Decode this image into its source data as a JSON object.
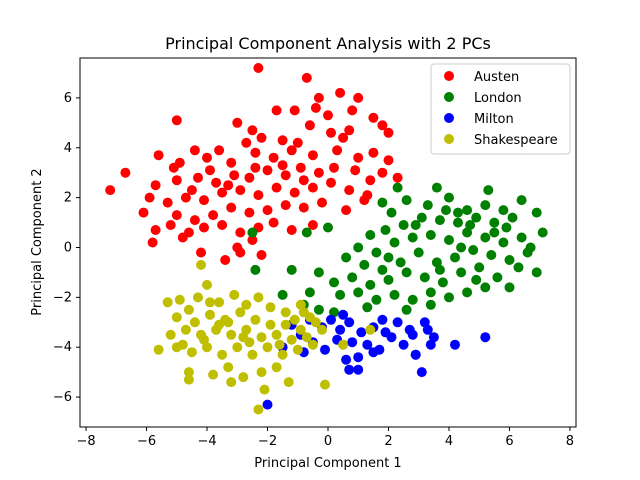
{
  "chart_data": {
    "type": "scatter",
    "title": "Principal Component Analysis with 2 PCs",
    "xlabel": "Principal Component 1",
    "ylabel": "Principal Component 2",
    "xlim": [
      -8.2,
      8.2
    ],
    "ylim": [
      -7.2,
      7.6
    ],
    "xticks": [
      -8,
      -6,
      -4,
      -2,
      0,
      2,
      4,
      6,
      8
    ],
    "yticks": [
      -6,
      -4,
      -2,
      0,
      2,
      4,
      6
    ],
    "grid": false,
    "legend_position": "top-right",
    "series": [
      {
        "name": "Austen",
        "color": "#ff0000",
        "points": [
          [
            -2.3,
            7.2
          ],
          [
            -0.7,
            6.8
          ],
          [
            -0.3,
            6.0
          ],
          [
            0.4,
            6.2
          ],
          [
            1.0,
            6.0
          ],
          [
            -1.7,
            5.5
          ],
          [
            -1.1,
            5.5
          ],
          [
            -0.4,
            5.6
          ],
          [
            0.0,
            5.3
          ],
          [
            0.8,
            5.5
          ],
          [
            1.5,
            5.2
          ],
          [
            -3.0,
            5.0
          ],
          [
            -2.5,
            4.7
          ],
          [
            -5.0,
            5.1
          ],
          [
            1.8,
            4.9
          ],
          [
            2.0,
            4.6
          ],
          [
            -0.6,
            4.9
          ],
          [
            0.1,
            4.6
          ],
          [
            0.7,
            4.7
          ],
          [
            -1.5,
            4.3
          ],
          [
            -2.7,
            4.2
          ],
          [
            -3.6,
            3.9
          ],
          [
            -4.4,
            3.9
          ],
          [
            -4.9,
            3.4
          ],
          [
            -5.6,
            3.7
          ],
          [
            -5.1,
            3.2
          ],
          [
            -4.0,
            3.6
          ],
          [
            -3.2,
            3.4
          ],
          [
            -2.4,
            3.8
          ],
          [
            -1.8,
            3.6
          ],
          [
            -1.2,
            3.9
          ],
          [
            -0.5,
            3.7
          ],
          [
            0.3,
            3.9
          ],
          [
            1.0,
            3.6
          ],
          [
            1.5,
            3.8
          ],
          [
            2.0,
            3.5
          ],
          [
            1.8,
            3.0
          ],
          [
            2.3,
            2.8
          ],
          [
            1.4,
            2.7
          ],
          [
            0.9,
            3.1
          ],
          [
            0.2,
            3.2
          ],
          [
            -0.3,
            3.0
          ],
          [
            -0.9,
            3.2
          ],
          [
            -1.4,
            2.9
          ],
          [
            -2.0,
            3.1
          ],
          [
            -2.6,
            2.8
          ],
          [
            -3.1,
            2.9
          ],
          [
            -3.7,
            2.6
          ],
          [
            -4.3,
            2.8
          ],
          [
            -5.0,
            2.7
          ],
          [
            -5.7,
            2.5
          ],
          [
            -6.7,
            3.0
          ],
          [
            -7.2,
            2.3
          ],
          [
            -5.9,
            2.0
          ],
          [
            -5.3,
            1.8
          ],
          [
            -4.7,
            2.0
          ],
          [
            -4.1,
            1.9
          ],
          [
            -3.5,
            2.2
          ],
          [
            -2.9,
            2.3
          ],
          [
            -2.3,
            2.1
          ],
          [
            -1.7,
            2.4
          ],
          [
            -1.1,
            2.2
          ],
          [
            -0.5,
            2.4
          ],
          [
            0.1,
            2.6
          ],
          [
            0.7,
            2.3
          ],
          [
            1.3,
            2.1
          ],
          [
            -0.2,
            1.8
          ],
          [
            -0.8,
            1.6
          ],
          [
            -1.4,
            1.7
          ],
          [
            -2.0,
            1.5
          ],
          [
            -2.6,
            1.4
          ],
          [
            -3.2,
            1.6
          ],
          [
            -3.8,
            1.3
          ],
          [
            -4.4,
            1.1
          ],
          [
            -5.0,
            1.3
          ],
          [
            -6.1,
            1.4
          ],
          [
            -5.7,
            0.7
          ],
          [
            -5.2,
            0.9
          ],
          [
            -4.6,
            0.6
          ],
          [
            -4.1,
            0.8
          ],
          [
            -3.5,
            0.9
          ],
          [
            -2.9,
            0.6
          ],
          [
            -2.3,
            0.8
          ],
          [
            -1.8,
            1.0
          ],
          [
            -1.2,
            0.7
          ],
          [
            -2.5,
            0.3
          ],
          [
            -3.0,
            0.0
          ],
          [
            -4.8,
            0.4
          ],
          [
            -5.8,
            0.2
          ],
          [
            -4.2,
            -0.2
          ],
          [
            -3.4,
            -0.5
          ],
          [
            -2.9,
            -0.2
          ],
          [
            -2.2,
            -0.3
          ],
          [
            -0.5,
            0.9
          ],
          [
            0.6,
            1.5
          ],
          [
            1.2,
            1.9
          ],
          [
            -3.9,
            3.1
          ],
          [
            -2.2,
            4.4
          ],
          [
            -1.0,
            4.2
          ],
          [
            0.5,
            4.4
          ],
          [
            -4.5,
            2.3
          ],
          [
            -3.3,
            2.5
          ],
          [
            -2.4,
            3.2
          ],
          [
            -1.5,
            3.3
          ],
          [
            -0.8,
            2.7
          ]
        ]
      },
      {
        "name": "London",
        "color": "#008000",
        "points": [
          [
            3.6,
            2.4
          ],
          [
            5.3,
            2.3
          ],
          [
            2.3,
            2.4
          ],
          [
            1.8,
            1.8
          ],
          [
            2.6,
            1.9
          ],
          [
            3.3,
            1.7
          ],
          [
            4.0,
            2.0
          ],
          [
            4.6,
            1.5
          ],
          [
            5.2,
            1.7
          ],
          [
            5.8,
            1.5
          ],
          [
            6.4,
            1.9
          ],
          [
            6.9,
            1.4
          ],
          [
            6.1,
            1.2
          ],
          [
            5.5,
            1.0
          ],
          [
            4.9,
            1.2
          ],
          [
            4.3,
            1.0
          ],
          [
            3.7,
            1.1
          ],
          [
            3.1,
            1.2
          ],
          [
            2.5,
            0.9
          ],
          [
            1.9,
            0.7
          ],
          [
            1.4,
            0.5
          ],
          [
            -2.5,
            0.6
          ],
          [
            -0.7,
            0.6
          ],
          [
            0.0,
            0.8
          ],
          [
            1.0,
            0.0
          ],
          [
            1.6,
            -0.2
          ],
          [
            2.2,
            0.2
          ],
          [
            2.8,
            0.4
          ],
          [
            3.4,
            0.5
          ],
          [
            4.0,
            0.3
          ],
          [
            4.6,
            0.6
          ],
          [
            5.2,
            0.4
          ],
          [
            5.8,
            0.2
          ],
          [
            6.4,
            0.4
          ],
          [
            7.1,
            0.6
          ],
          [
            6.6,
            -0.2
          ],
          [
            6.0,
            -0.5
          ],
          [
            5.4,
            -0.3
          ],
          [
            4.8,
            -0.1
          ],
          [
            4.2,
            -0.4
          ],
          [
            3.6,
            -0.6
          ],
          [
            3.0,
            -0.2
          ],
          [
            2.4,
            -0.6
          ],
          [
            1.8,
            -0.9
          ],
          [
            1.2,
            -0.7
          ],
          [
            0.6,
            -0.4
          ],
          [
            -1.2,
            -0.9
          ],
          [
            -2.4,
            -0.9
          ],
          [
            -0.3,
            -1.0
          ],
          [
            0.2,
            -1.4
          ],
          [
            0.8,
            -1.2
          ],
          [
            1.4,
            -1.5
          ],
          [
            2.0,
            -1.3
          ],
          [
            2.6,
            -1.0
          ],
          [
            3.2,
            -1.2
          ],
          [
            3.8,
            -1.4
          ],
          [
            4.4,
            -1.0
          ],
          [
            5.0,
            -0.8
          ],
          [
            5.6,
            -1.2
          ],
          [
            6.3,
            -0.8
          ],
          [
            6.9,
            -1.0
          ],
          [
            6.0,
            -1.6
          ],
          [
            5.2,
            -1.6
          ],
          [
            4.6,
            -1.8
          ],
          [
            4.0,
            -2.0
          ],
          [
            3.4,
            -1.8
          ],
          [
            2.8,
            -2.1
          ],
          [
            2.2,
            -1.9
          ],
          [
            1.6,
            -2.1
          ],
          [
            1.0,
            -1.8
          ],
          [
            0.4,
            -1.9
          ],
          [
            -0.6,
            -1.8
          ],
          [
            -1.5,
            -1.9
          ],
          [
            -0.8,
            -2.3
          ],
          [
            0.2,
            -2.6
          ],
          [
            1.3,
            -2.4
          ],
          [
            2.6,
            -2.5
          ],
          [
            3.4,
            -2.3
          ],
          [
            -0.3,
            -2.5
          ],
          [
            4.4,
            0.0
          ],
          [
            3.9,
            1.5
          ],
          [
            4.7,
            0.9
          ],
          [
            5.5,
            0.6
          ],
          [
            6.7,
            0.0
          ],
          [
            2.9,
            0.9
          ],
          [
            2.0,
            -0.4
          ],
          [
            3.7,
            -0.9
          ],
          [
            4.9,
            -1.3
          ],
          [
            5.9,
            0.8
          ],
          [
            4.3,
            1.4
          ],
          [
            2.1,
            1.4
          ]
        ]
      },
      {
        "name": "Milton",
        "color": "#0000ff",
        "points": [
          [
            -1.2,
            -3.1
          ],
          [
            -0.9,
            -3.5
          ],
          [
            -0.6,
            -2.9
          ],
          [
            -0.2,
            -3.2
          ],
          [
            0.1,
            -2.9
          ],
          [
            0.4,
            -3.3
          ],
          [
            0.7,
            -3.0
          ],
          [
            1.1,
            -3.4
          ],
          [
            1.5,
            -3.2
          ],
          [
            1.9,
            -3.4
          ],
          [
            2.3,
            -3.0
          ],
          [
            2.7,
            -3.3
          ],
          [
            3.2,
            -3.0
          ],
          [
            3.5,
            -3.6
          ],
          [
            -0.5,
            -3.8
          ],
          [
            -0.1,
            -4.1
          ],
          [
            0.3,
            -3.7
          ],
          [
            0.8,
            -3.8
          ],
          [
            1.3,
            -3.9
          ],
          [
            1.7,
            -4.1
          ],
          [
            2.1,
            -3.6
          ],
          [
            2.5,
            -3.9
          ],
          [
            2.9,
            -4.3
          ],
          [
            3.4,
            -3.9
          ],
          [
            4.2,
            -3.9
          ],
          [
            5.2,
            -3.6
          ],
          [
            0.6,
            -4.5
          ],
          [
            1.0,
            -4.4
          ],
          [
            1.5,
            -4.2
          ],
          [
            0.7,
            -4.9
          ],
          [
            1.0,
            -4.9
          ],
          [
            2.9,
            -4.3
          ],
          [
            3.1,
            -5.0
          ],
          [
            -2.0,
            -6.3
          ],
          [
            -1.5,
            -4.0
          ],
          [
            -0.8,
            -4.2
          ],
          [
            0.5,
            -2.7
          ],
          [
            1.8,
            -2.9
          ],
          [
            2.8,
            -3.5
          ],
          [
            3.3,
            -3.3
          ]
        ]
      },
      {
        "name": "Shakespeare",
        "color": "#bfbf00",
        "points": [
          [
            -4.2,
            -0.7
          ],
          [
            -4.0,
            -1.5
          ],
          [
            -4.3,
            -2.0
          ],
          [
            -3.6,
            -2.2
          ],
          [
            -3.1,
            -1.9
          ],
          [
            -2.7,
            -2.3
          ],
          [
            -2.3,
            -2.0
          ],
          [
            -1.9,
            -2.4
          ],
          [
            -1.4,
            -2.6
          ],
          [
            -0.9,
            -2.3
          ],
          [
            -0.6,
            -2.8
          ],
          [
            -4.9,
            -2.1
          ],
          [
            -5.3,
            -2.2
          ],
          [
            -4.6,
            -2.5
          ],
          [
            -5.0,
            -2.8
          ],
          [
            -4.4,
            -3.0
          ],
          [
            -3.9,
            -2.7
          ],
          [
            -3.4,
            -2.9
          ],
          [
            -2.9,
            -2.6
          ],
          [
            -2.4,
            -2.9
          ],
          [
            -1.9,
            -3.1
          ],
          [
            -1.4,
            -3.1
          ],
          [
            -0.9,
            -3.3
          ],
          [
            -0.4,
            -3.0
          ],
          [
            -5.2,
            -3.5
          ],
          [
            -4.7,
            -3.3
          ],
          [
            -4.2,
            -3.5
          ],
          [
            -3.7,
            -3.3
          ],
          [
            -3.2,
            -3.5
          ],
          [
            -2.7,
            -3.3
          ],
          [
            -2.2,
            -3.6
          ],
          [
            -1.7,
            -3.5
          ],
          [
            -1.2,
            -3.7
          ],
          [
            -0.7,
            -3.6
          ],
          [
            -0.2,
            -3.3
          ],
          [
            -5.6,
            -4.1
          ],
          [
            -5.0,
            -4.0
          ],
          [
            -4.5,
            -4.2
          ],
          [
            -4.0,
            -4.0
          ],
          [
            -3.5,
            -4.3
          ],
          [
            -3.0,
            -4.0
          ],
          [
            -2.5,
            -4.3
          ],
          [
            -2.0,
            -4.0
          ],
          [
            -1.5,
            -4.3
          ],
          [
            -1.0,
            -4.1
          ],
          [
            -0.5,
            -3.9
          ],
          [
            0.5,
            -3.9
          ],
          [
            1.4,
            -3.3
          ],
          [
            -4.6,
            -5.0
          ],
          [
            -4.6,
            -5.3
          ],
          [
            -3.8,
            -5.1
          ],
          [
            -3.3,
            -4.8
          ],
          [
            -2.8,
            -5.2
          ],
          [
            -2.2,
            -5.0
          ],
          [
            -1.7,
            -4.8
          ],
          [
            -1.3,
            -5.4
          ],
          [
            -0.1,
            -5.5
          ],
          [
            -3.2,
            -5.4
          ],
          [
            -2.1,
            -5.7
          ],
          [
            -2.3,
            -6.5
          ],
          [
            -3.6,
            -3.1
          ],
          [
            -2.6,
            -3.8
          ],
          [
            -1.6,
            -3.9
          ],
          [
            -4.1,
            -3.7
          ],
          [
            -3.3,
            -3.0
          ],
          [
            -2.8,
            -3.6
          ],
          [
            -1.1,
            -2.9
          ],
          [
            -4.8,
            -3.9
          ],
          [
            -0.8,
            -2.6
          ],
          [
            -3.9,
            -2.2
          ]
        ]
      }
    ]
  }
}
